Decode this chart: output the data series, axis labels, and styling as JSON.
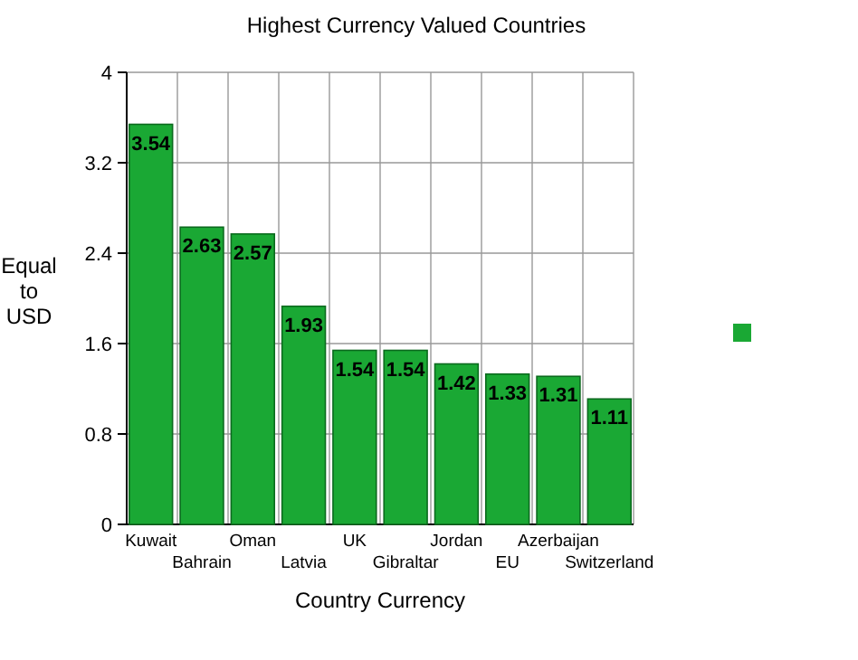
{
  "chart_data": {
    "type": "bar",
    "title": "Highest Currency Valued Countries",
    "xlabel": "Country Currency",
    "ylabel": "Equal to USD",
    "categories": [
      "Kuwait",
      "Bahrain",
      "Oman",
      "Latvia",
      "UK",
      "Gibraltar",
      "Jordan",
      "EU",
      "Azerbaijan",
      "Switzerland"
    ],
    "values": [
      3.54,
      2.63,
      2.57,
      1.93,
      1.54,
      1.54,
      1.42,
      1.33,
      1.31,
      1.11
    ],
    "color": "#1aa834",
    "ylim": [
      0,
      4
    ],
    "yticks": [
      0,
      0.8,
      1.6,
      2.4,
      3.2,
      4
    ],
    "grid": true,
    "data_labels": true
  }
}
